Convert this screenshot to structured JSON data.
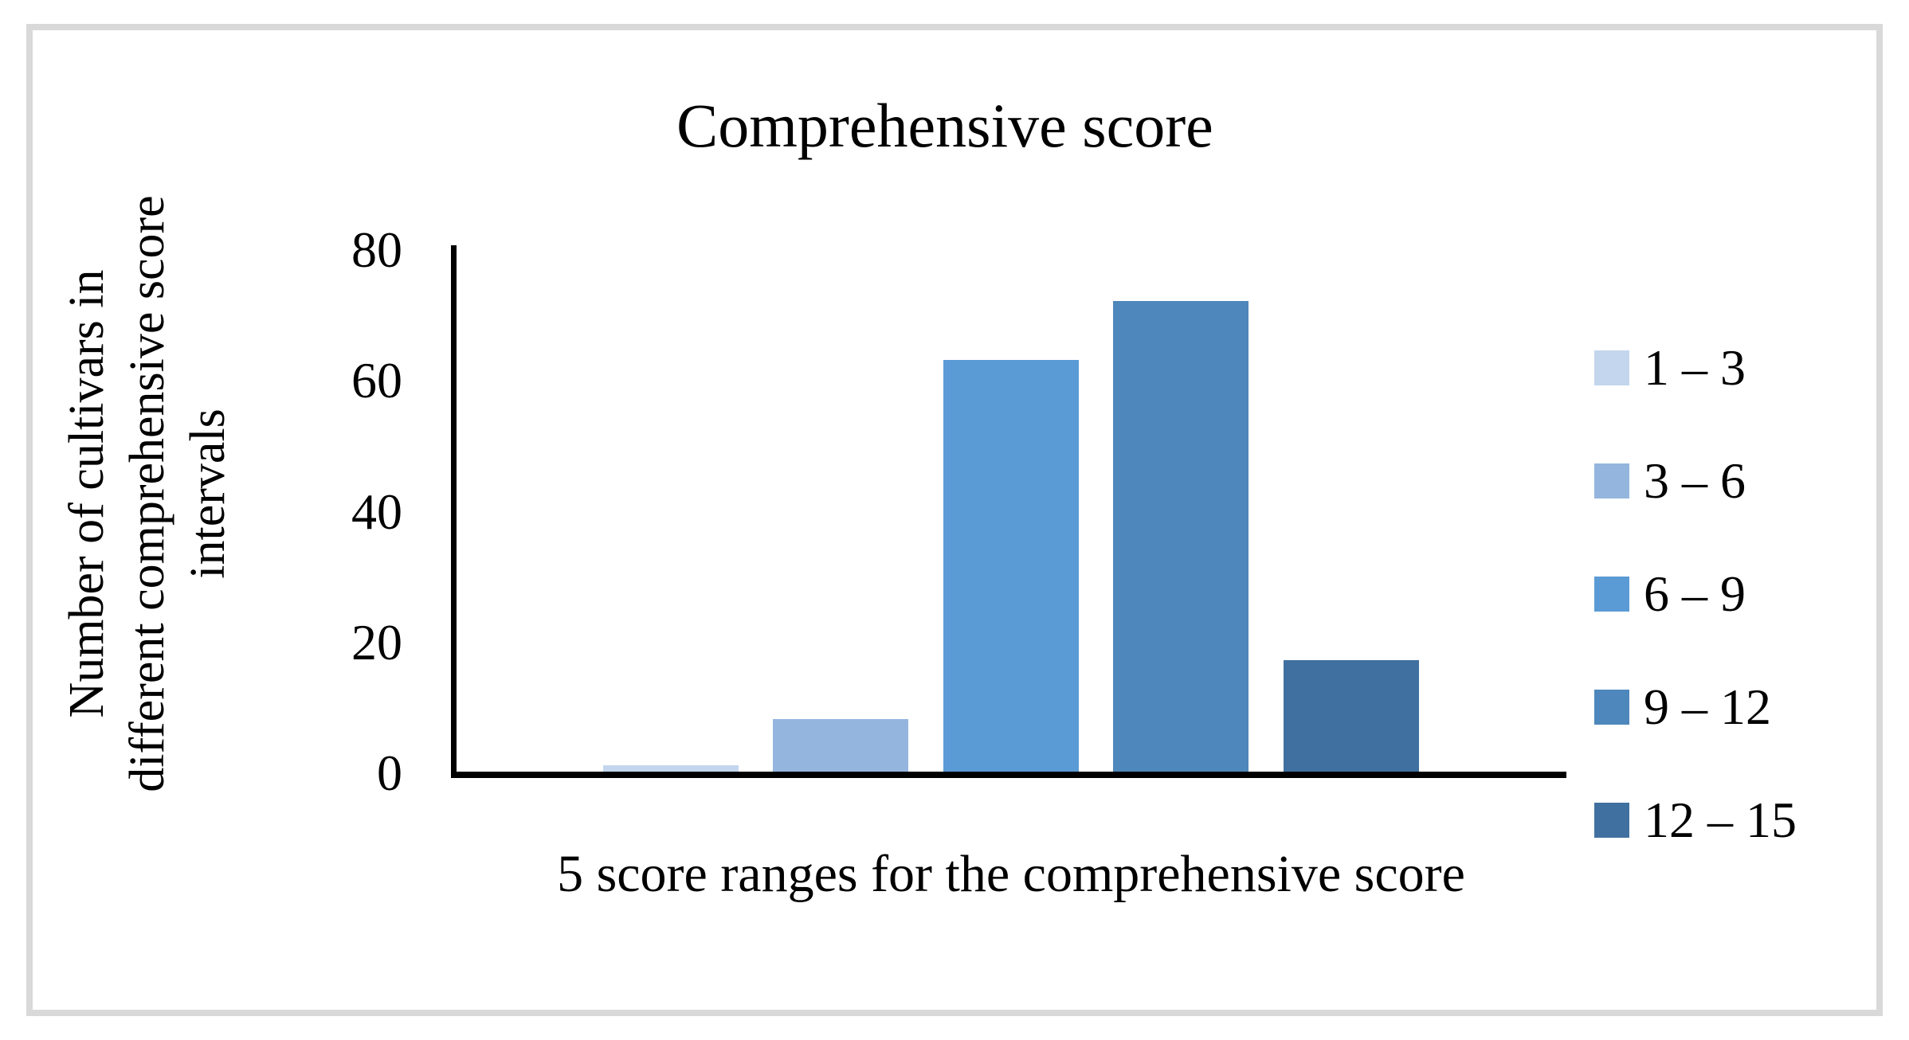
{
  "figure": {
    "border_color": "#d9d9d9",
    "background_color": "#ffffff",
    "text_color": "#000000"
  },
  "chart_data": {
    "type": "bar",
    "title": "Comprehensive score",
    "xlabel": "5 score ranges for the comprehensive score",
    "ylabel": "Number of cultivars in different comprehensive score intervals",
    "ylabel_lines": [
      "Number of cultivars in",
      "different comprehensive score",
      "intervals"
    ],
    "categories": [
      "1 – 3",
      "3 – 6",
      "6 – 9",
      "9 – 12",
      "12 – 15"
    ],
    "values": [
      1,
      8,
      63,
      72,
      17
    ],
    "colors": [
      "#c3d6ed",
      "#94b5dd",
      "#5b9bd5",
      "#4e87bb",
      "#40709f"
    ],
    "y_ticks": [
      0,
      20,
      40,
      60,
      80
    ],
    "ylim": [
      0,
      80
    ],
    "grid": false,
    "axis_color": "#000000",
    "legend_position": "right"
  }
}
